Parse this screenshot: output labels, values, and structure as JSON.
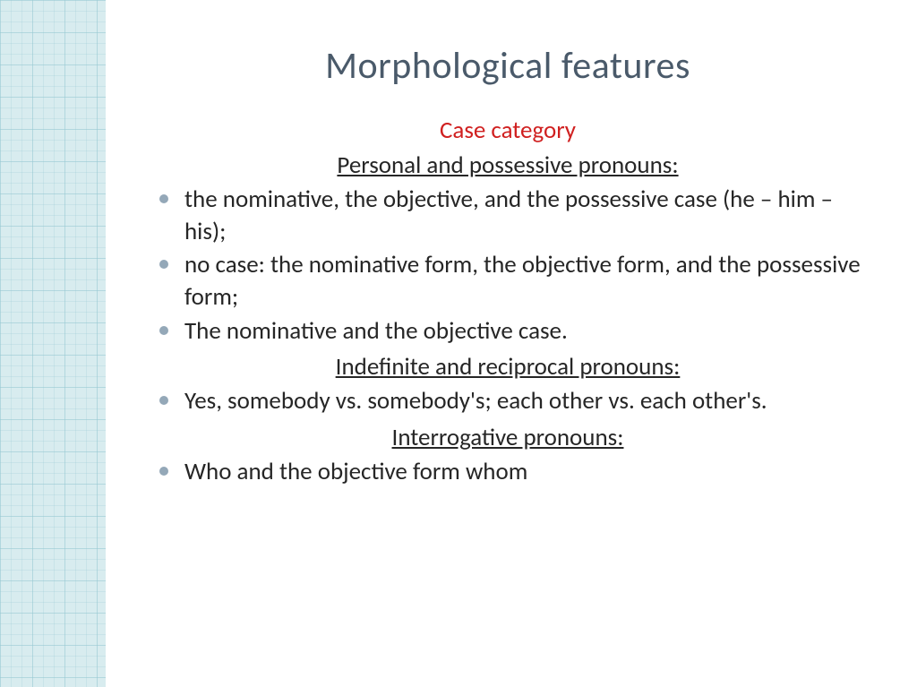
{
  "colors": {
    "sidebar_bg": "#d8ecef",
    "grid_major": "rgba(150,200,210,0.45)",
    "grid_minor": "rgba(150,200,210,0.25)",
    "title": "#4a5a6a",
    "subtitle_red": "#d02020",
    "body_text": "#262626",
    "bullet": "#94a8b8",
    "page_bg": "#ffffff"
  },
  "typography": {
    "family": "Gill Sans / Calibri",
    "title_size": 42,
    "body_size": 27,
    "line_height": 1.32
  },
  "slide": {
    "title": "Morphological features",
    "subtitle_red": "Case category",
    "sections": {
      "personal_possessive": {
        "heading": "Personal and possessive pronouns:",
        "items": [
          "the nominative, the objective, and the possessive case (he – him – his);",
          "no case: the nominative form, the objective form, and the possessive form;",
          "The nominative and the objective case."
        ]
      },
      "indefinite_reciprocal": {
        "heading": "Indefinite and reciprocal pronouns:",
        "items": [
          "Yes, somebody vs. somebody's; each other vs. each other's."
        ]
      },
      "interrogative": {
        "heading": "Interrogative pronouns:",
        "items": [
          "Who and the objective form whom"
        ]
      }
    }
  }
}
